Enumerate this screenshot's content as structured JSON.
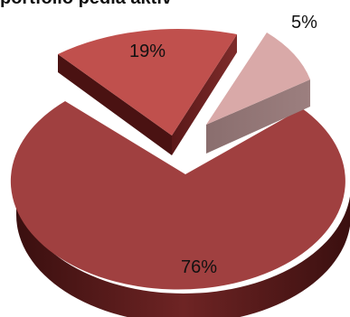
{
  "chart_data": {
    "type": "pie",
    "title": "portfolio pedia aktiv",
    "slices": [
      {
        "label": "76%",
        "value": 76,
        "color": "#a04040"
      },
      {
        "label": "19%",
        "value": 19,
        "color": "#c0504d"
      },
      {
        "label": "5%",
        "value": 5,
        "color": "#d9a9a8"
      }
    ],
    "exploded": true,
    "three_d": true,
    "legend": "none"
  }
}
